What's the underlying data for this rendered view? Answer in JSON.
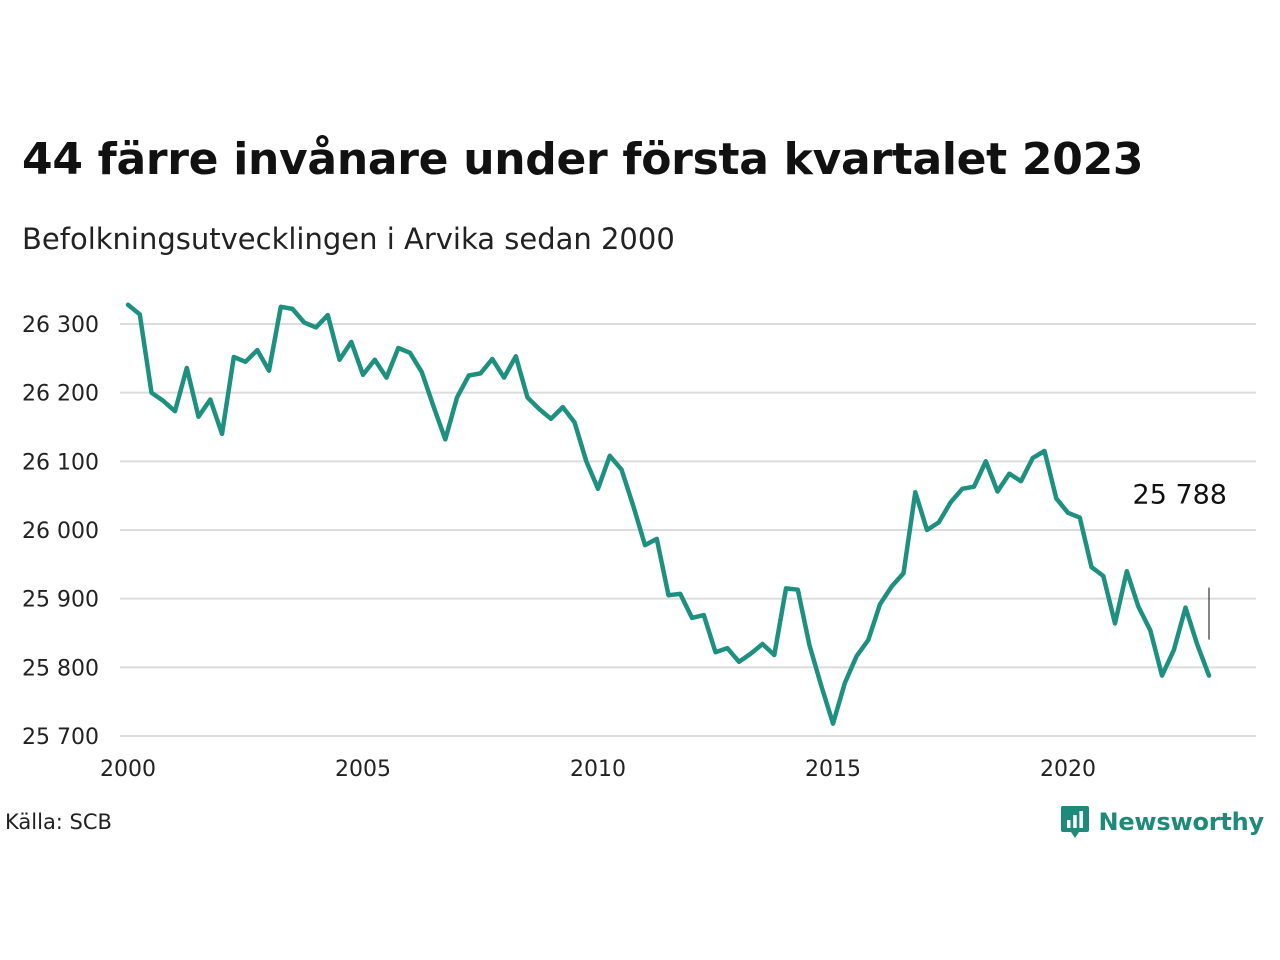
{
  "header": {
    "title": "44 färre invånare under första kvartalet 2023",
    "subtitle": "Befolkningsutvecklingen i Arvika sedan 2000"
  },
  "footer": {
    "source": "Källa: SCB",
    "brand": "Newsworthy",
    "brand_icon": "bar-chart-speech-icon",
    "brand_color": "#1e8a7a"
  },
  "chart_data": {
    "type": "line",
    "x_unit": "year (quarterly observations)",
    "y_unit": "inhabitants",
    "xlim": [
      2000,
      2024
    ],
    "ylim": [
      25700,
      26330
    ],
    "x_ticks": [
      2000,
      2005,
      2010,
      2015,
      2020
    ],
    "x_tick_labels": [
      "2000",
      "2005",
      "2010",
      "2015",
      "2020"
    ],
    "y_ticks": [
      25700,
      25800,
      25900,
      26000,
      26100,
      26200,
      26300
    ],
    "y_tick_labels": [
      "25 700",
      "25 800",
      "25 900",
      "26 000",
      "26 100",
      "26 200",
      "26 300"
    ],
    "grid": "horizontal",
    "line_color": "#1e9080",
    "last_value_label": "25 788",
    "series": [
      {
        "x": [
          2000.0,
          2000.25,
          2000.5,
          2000.75,
          2001.0,
          2001.25,
          2001.5,
          2001.75,
          2002.0,
          2002.25,
          2002.5,
          2002.75,
          2003.0,
          2003.25,
          2003.5,
          2003.75,
          2004.0,
          2004.25,
          2004.5,
          2004.75,
          2005.0,
          2005.25,
          2005.5,
          2005.75,
          2006.0,
          2006.25,
          2006.5,
          2006.75,
          2007.0,
          2007.25,
          2007.5,
          2007.75,
          2008.0,
          2008.25,
          2008.5,
          2008.75,
          2009.0,
          2009.25,
          2009.5,
          2009.75,
          2010.0,
          2010.25,
          2010.5,
          2010.75,
          2011.0,
          2011.25,
          2011.5,
          2011.75,
          2012.0,
          2012.25,
          2012.5,
          2012.75,
          2013.0,
          2013.25,
          2013.5,
          2013.75,
          2014.0,
          2014.25,
          2014.5,
          2014.75,
          2015.0,
          2015.25,
          2015.5,
          2015.75,
          2016.0,
          2016.25,
          2016.5,
          2016.75,
          2017.0,
          2017.25,
          2017.5,
          2017.75,
          2018.0,
          2018.25,
          2018.5,
          2018.75,
          2019.0,
          2019.25,
          2019.5,
          2019.75,
          2020.0,
          2020.25,
          2020.5,
          2020.75,
          2021.0,
          2021.25,
          2021.5,
          2021.75,
          2022.0,
          2022.25,
          2022.5,
          2022.75,
          2023.0
        ],
        "y": [
          26328,
          26314,
          26200,
          26188,
          26173,
          26236,
          26165,
          26190,
          26140,
          26252,
          26245,
          26262,
          26232,
          26325,
          26322,
          26302,
          26295,
          26313,
          26248,
          26274,
          26226,
          26248,
          26222,
          26265,
          26258,
          26230,
          26180,
          26132,
          26193,
          26225,
          26228,
          26249,
          26222,
          26253,
          26193,
          26176,
          26162,
          26179,
          26157,
          26100,
          26060,
          26108,
          26088,
          26035,
          25978,
          25987,
          25905,
          25907,
          25872,
          25876,
          25822,
          25828,
          25808,
          25820,
          25834,
          25818,
          25915,
          25913,
          25832,
          25773,
          25718,
          25777,
          25816,
          25840,
          25892,
          25918,
          25937,
          26055,
          26000,
          26011,
          26040,
          26060,
          26063,
          26100,
          26056,
          26082,
          26071,
          26105,
          26115,
          26046,
          26025,
          26018,
          25946,
          25933,
          25864,
          25940,
          25888,
          25854,
          25788,
          25825,
          25887,
          25833,
          25788
        ]
      }
    ]
  }
}
